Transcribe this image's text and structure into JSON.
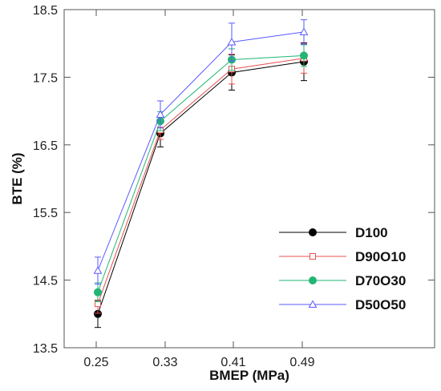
{
  "chart_data": {
    "type": "line",
    "title": "",
    "xlabel": "BMEP (MPa)",
    "ylabel": "BTE (%)",
    "categories": [
      "0.25",
      "0.33",
      "0.41",
      "0.49"
    ],
    "x_ticks": [
      "0.25",
      "0.33",
      "0.41",
      "0.49"
    ],
    "y_ticks": [
      "13.5",
      "14.5",
      "15.5",
      "16.5",
      "17.5",
      "18.5"
    ],
    "ylim": [
      13.5,
      18.5
    ],
    "grid": false,
    "legend_position": "bottom-right",
    "series": [
      {
        "name": "D100",
        "color": "#000000",
        "marker": "filled-circle",
        "values": [
          14.0,
          16.67,
          17.57,
          17.73
        ],
        "errors": [
          0.2,
          0.2,
          0.26,
          0.28
        ]
      },
      {
        "name": "D90O10",
        "color": "#e8504f",
        "marker": "open-square",
        "values": [
          14.15,
          16.72,
          17.62,
          17.78
        ],
        "errors": [
          0.14,
          0.14,
          0.22,
          0.22
        ]
      },
      {
        "name": "D70O30",
        "color": "#22b573",
        "marker": "filled-circle",
        "values": [
          14.32,
          16.85,
          17.76,
          17.82
        ],
        "errors": [
          0.14,
          0.14,
          0.16,
          0.16
        ]
      },
      {
        "name": "D50O50",
        "color": "#5a5aff",
        "marker": "open-triangle",
        "values": [
          14.64,
          16.95,
          18.02,
          18.17
        ],
        "errors": [
          0.2,
          0.2,
          0.28,
          0.18
        ]
      }
    ]
  }
}
